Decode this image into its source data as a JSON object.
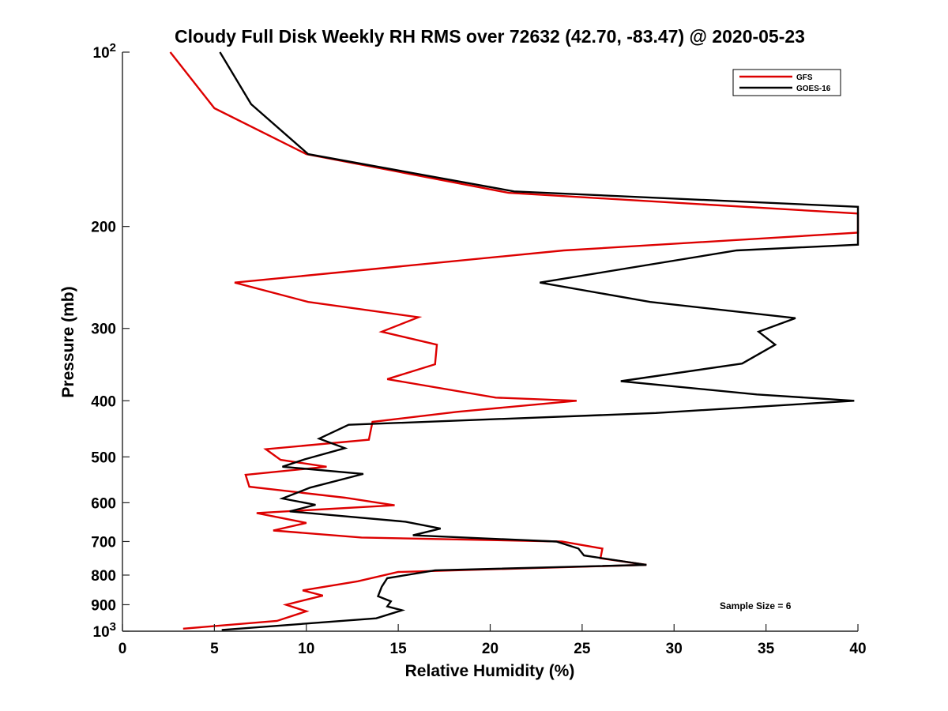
{
  "chart_data": {
    "type": "line",
    "title": "Cloudy Full Disk Weekly RH RMS over 72632 (42.70, -83.47) @ 2020-05-23",
    "xlabel": "Relative Humidity (%)",
    "ylabel": "Pressure (mb)",
    "xlim": [
      0,
      40
    ],
    "ylim": [
      100,
      1000
    ],
    "y_scale": "log",
    "y_reversed": true,
    "x_ticks": [
      0,
      5,
      10,
      15,
      20,
      25,
      30,
      35,
      40
    ],
    "y_ticks": [
      {
        "value": 100,
        "label": "10",
        "sup": "2"
      },
      {
        "value": 200,
        "label": "200",
        "sup": ""
      },
      {
        "value": 300,
        "label": "300",
        "sup": ""
      },
      {
        "value": 400,
        "label": "400",
        "sup": ""
      },
      {
        "value": 500,
        "label": "500",
        "sup": ""
      },
      {
        "value": 600,
        "label": "600",
        "sup": ""
      },
      {
        "value": 700,
        "label": "700",
        "sup": ""
      },
      {
        "value": 800,
        "label": "800",
        "sup": ""
      },
      {
        "value": 900,
        "label": "900",
        "sup": ""
      },
      {
        "value": 1000,
        "label": "10",
        "sup": "3"
      }
    ],
    "grid": false,
    "legend_position": "top-right",
    "series": [
      {
        "name": "GFS",
        "color": "#dd0000",
        "points": [
          [
            2.6,
            100
          ],
          [
            5.0,
            125
          ],
          [
            10.0,
            150
          ],
          [
            21.0,
            175
          ],
          [
            40.0,
            190
          ],
          [
            40.0,
            205
          ],
          [
            24.0,
            220
          ],
          [
            6.1,
            250
          ],
          [
            10.1,
            270
          ],
          [
            16.1,
            287
          ],
          [
            14.1,
            304
          ],
          [
            17.1,
            320
          ],
          [
            17.0,
            346
          ],
          [
            14.4,
            367
          ],
          [
            20.3,
            395
          ],
          [
            24.7,
            400
          ],
          [
            18.2,
            418
          ],
          [
            13.6,
            435
          ],
          [
            13.4,
            467
          ],
          [
            7.8,
            485
          ],
          [
            8.6,
            506
          ],
          [
            11.1,
            520
          ],
          [
            6.7,
            537
          ],
          [
            6.9,
            563
          ],
          [
            12.1,
            588
          ],
          [
            14.8,
            606
          ],
          [
            7.3,
            625
          ],
          [
            10.0,
            650
          ],
          [
            8.2,
            670
          ],
          [
            13.0,
            689
          ],
          [
            23.9,
            700
          ],
          [
            26.1,
            720
          ],
          [
            26.0,
            748
          ],
          [
            28.5,
            768
          ],
          [
            15.0,
            790
          ],
          [
            12.8,
            820
          ],
          [
            9.8,
            850
          ],
          [
            10.9,
            868
          ],
          [
            8.9,
            900
          ],
          [
            10.0,
            924
          ],
          [
            8.4,
            960
          ],
          [
            3.3,
            990
          ]
        ]
      },
      {
        "name": "GOES-16",
        "color": "#000000",
        "points": [
          [
            5.3,
            100
          ],
          [
            7.0,
            123
          ],
          [
            10.1,
            150
          ],
          [
            21.3,
            174
          ],
          [
            40.0,
            185
          ],
          [
            40.0,
            215
          ],
          [
            33.4,
            220
          ],
          [
            22.7,
            250
          ],
          [
            28.7,
            270
          ],
          [
            36.6,
            288
          ],
          [
            34.6,
            304
          ],
          [
            35.5,
            320
          ],
          [
            33.7,
            345
          ],
          [
            27.1,
            370
          ],
          [
            34.5,
            390
          ],
          [
            39.8,
            400
          ],
          [
            29.0,
            420
          ],
          [
            12.3,
            440
          ],
          [
            10.7,
            465
          ],
          [
            12.1,
            483
          ],
          [
            9.9,
            505
          ],
          [
            8.7,
            520
          ],
          [
            13.1,
            535
          ],
          [
            10.2,
            565
          ],
          [
            8.7,
            590
          ],
          [
            10.5,
            605
          ],
          [
            9.1,
            621
          ],
          [
            15.4,
            647
          ],
          [
            17.3,
            665
          ],
          [
            15.8,
            683
          ],
          [
            23.6,
            700
          ],
          [
            24.8,
            720
          ],
          [
            25.1,
            740
          ],
          [
            28.5,
            768
          ],
          [
            17.0,
            785
          ],
          [
            14.4,
            810
          ],
          [
            14.1,
            838
          ],
          [
            13.9,
            870
          ],
          [
            14.6,
            888
          ],
          [
            14.4,
            906
          ],
          [
            15.2,
            920
          ],
          [
            13.8,
            950
          ],
          [
            5.4,
            995
          ]
        ]
      }
    ],
    "legend": [
      {
        "label": "GFS",
        "color": "#dd0000"
      },
      {
        "label": "GOES-16",
        "color": "#000000"
      }
    ],
    "annotations": {
      "sample_size": "Sample Size = 6"
    }
  }
}
